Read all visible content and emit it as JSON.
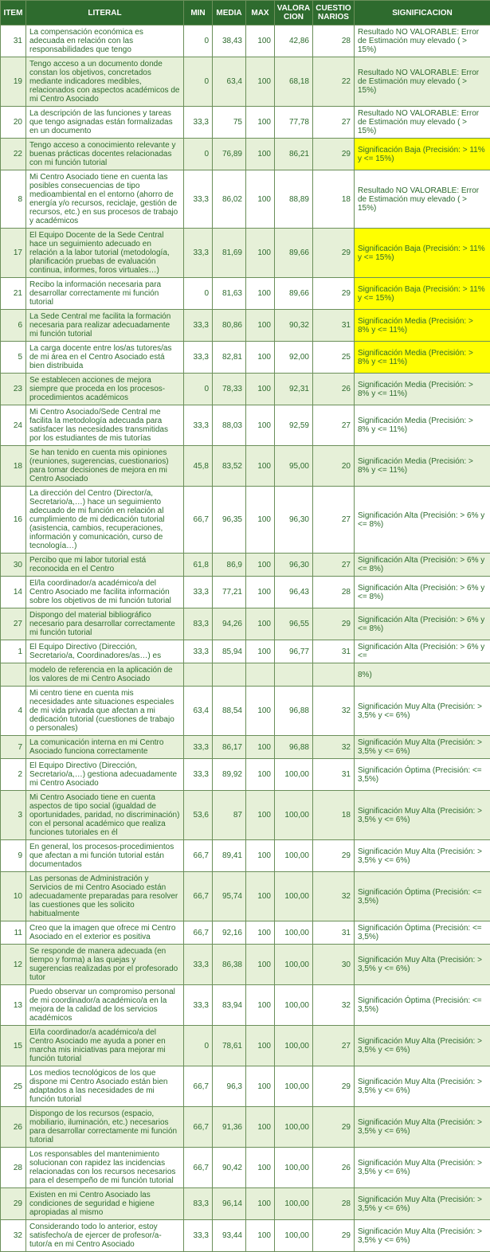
{
  "headers": {
    "item": "ITEM",
    "literal": "LITERAL",
    "min": "MIN",
    "media": "MEDIA",
    "max": "MAX",
    "valoracion": "VALORA CION",
    "cuestionarios": "CUESTIO NARIOS",
    "significacion": "SIGNIFICACION"
  },
  "sig_texts": {
    "no_valorable": "Resultado NO VALORABLE: Error de Estimación muy elevado ( > 15%)",
    "baja": "Significación Baja (Precisión: > 11% y <= 15%)",
    "media": "Significación Media (Precisión: > 8% y <= 11%)",
    "alta": "Significación Alta (Precisión: > 6% y <= 8%)",
    "muy_alta": "Significación Muy Alta (Precisión: > 3,5% y <= 6%)",
    "optima": "Significación Óptima (Precisión: <= 3,5%)"
  },
  "rows": [
    {
      "item": "31",
      "literal": "La compensación económica es adecuada en relación con las responsabilidades que tengo",
      "min": "0",
      "media": "38,43",
      "max": "100",
      "val": "42,86",
      "cue": "28",
      "sig": "no_valorable",
      "hl": false,
      "shade": "odd"
    },
    {
      "item": "19",
      "literal": "Tengo acceso a un documento donde constan los objetivos, concretados mediante indicadores medibles, relacionados con aspectos académicos de mi Centro Asociado",
      "min": "0",
      "media": "63,4",
      "max": "100",
      "val": "68,18",
      "cue": "22",
      "sig": "no_valorable",
      "hl": false,
      "shade": "even"
    },
    {
      "item": "20",
      "literal": "La descripción de las funciones y tareas que tengo asignadas están formalizadas en un documento",
      "min": "33,3",
      "media": "75",
      "max": "100",
      "val": "77,78",
      "cue": "27",
      "sig": "no_valorable",
      "hl": false,
      "shade": "odd"
    },
    {
      "item": "22",
      "literal": "Tengo acceso a conocimiento relevante y buenas prácticas docentes relacionadas con mi función tutorial",
      "min": "0",
      "media": "76,89",
      "max": "100",
      "val": "86,21",
      "cue": "29",
      "sig": "baja",
      "hl": true,
      "shade": "even"
    },
    {
      "item": "8",
      "literal": "Mi Centro Asociado tiene en cuenta las posibles consecuencias de tipo medioambiental en el entorno (ahorro de energía y/o recursos, reciclaje, gestión de recursos, etc.) en sus procesos de trabajo y académicos",
      "min": "33,3",
      "media": "86,02",
      "max": "100",
      "val": "88,89",
      "cue": "18",
      "sig": "no_valorable",
      "hl": false,
      "shade": "odd"
    },
    {
      "item": "17",
      "literal": "El Equipo Docente de la Sede Central hace un seguimiento adecuado en relación a la labor tutorial (metodología, planificación pruebas de evaluación continua, informes, foros virtuales…)",
      "min": "33,3",
      "media": "81,69",
      "max": "100",
      "val": "89,66",
      "cue": "29",
      "sig": "baja",
      "hl": true,
      "shade": "even"
    },
    {
      "item": "21",
      "literal": "Recibo la información necesaria para desarrollar correctamente mi función tutorial",
      "min": "0",
      "media": "81,63",
      "max": "100",
      "val": "89,66",
      "cue": "29",
      "sig": "baja",
      "hl": true,
      "shade": "odd"
    },
    {
      "item": "6",
      "literal": "La Sede Central me facilita la formación necesaria para realizar adecuadamente mi función tutorial",
      "min": "33,3",
      "media": "80,86",
      "max": "100",
      "val": "90,32",
      "cue": "31",
      "sig": "media",
      "hl": true,
      "shade": "even"
    },
    {
      "item": "5",
      "literal": "La carga docente entre los/as tutores/as de mi área en el Centro Asociado está bien distribuida",
      "min": "33,3",
      "media": "82,81",
      "max": "100",
      "val": "92,00",
      "cue": "25",
      "sig": "media",
      "hl": true,
      "shade": "odd"
    },
    {
      "item": "23",
      "literal": "Se establecen acciones de mejora siempre que proceda en los procesos-procedimientos académicos",
      "min": "0",
      "media": "78,33",
      "max": "100",
      "val": "92,31",
      "cue": "26",
      "sig": "media",
      "hl": false,
      "shade": "even"
    },
    {
      "item": "24",
      "literal": "Mi Centro Asociado/Sede Central me facilita la metodología adecuada para satisfacer las necesidades transmitidas por los estudiantes de mis tutorías",
      "min": "33,3",
      "media": "88,03",
      "max": "100",
      "val": "92,59",
      "cue": "27",
      "sig": "media",
      "hl": false,
      "shade": "odd"
    },
    {
      "item": "18",
      "literal": "Se han tenido en cuenta mis opiniones (reuniones, sugerencias, cuestionarios) para tomar decisiones de mejora en mi Centro Asociado",
      "min": "45,8",
      "media": "83,52",
      "max": "100",
      "val": "95,00",
      "cue": "20",
      "sig": "media",
      "hl": false,
      "shade": "even"
    },
    {
      "item": "16",
      "literal": "La dirección del Centro (Director/a, Secretario/a,…) hace un seguimiento adecuado de mi función en relación al cumplimiento de mi dedicación tutorial (asistencia, cambios, recuperaciones, información y comunicación, curso de tecnología…)",
      "min": "66,7",
      "media": "96,35",
      "max": "100",
      "val": "96,30",
      "cue": "27",
      "sig": "alta",
      "hl": false,
      "shade": "odd"
    },
    {
      "item": "30",
      "literal": "Percibo que mi labor tutorial está reconocida en el Centro",
      "min": "61,8",
      "media": "86,9",
      "max": "100",
      "val": "96,30",
      "cue": "27",
      "sig": "alta",
      "hl": false,
      "shade": "even"
    },
    {
      "item": "14",
      "literal": "El/la coordinador/a académico/a del Centro Asociado me facilita información sobre los objetivos de mi función tutorial",
      "min": "33,3",
      "media": "77,21",
      "max": "100",
      "val": "96,43",
      "cue": "28",
      "sig": "alta",
      "hl": false,
      "shade": "odd"
    },
    {
      "item": "27",
      "literal": "Dispongo del material bibliográfico necesario para desarrollar correctamente mi función tutorial",
      "min": "83,3",
      "media": "94,26",
      "max": "100",
      "val": "96,55",
      "cue": "29",
      "sig": "alta",
      "hl": false,
      "shade": "even"
    },
    {
      "item": "1",
      "literal": "El Equipo Directivo (Dirección, Secretario/a, Coordinadores/as…) es",
      "min": "33,3",
      "media": "85,94",
      "max": "100",
      "val": "96,77",
      "cue": "31",
      "sig_text": "Significación Alta (Precisión: > 6% y <=",
      "hl": false,
      "shade": "odd"
    },
    {
      "item": "",
      "literal": "modelo de referencia en la aplicación de los valores de mi Centro Asociado",
      "min": "",
      "media": "",
      "max": "",
      "val": "",
      "cue": "",
      "sig_text": "8%)",
      "hl": false,
      "shade": "even"
    },
    {
      "item": "4",
      "literal": "Mi centro tiene en cuenta mis necesidades ante situaciones especiales de mi vida privada que afectan a mi dedicación tutorial (cuestiones de trabajo o personales)",
      "min": "63,4",
      "media": "88,54",
      "max": "100",
      "val": "96,88",
      "cue": "32",
      "sig": "muy_alta",
      "hl": false,
      "shade": "odd"
    },
    {
      "item": "7",
      "literal": "La comunicación interna en mi Centro Asociado funciona correctamente",
      "min": "33,3",
      "media": "86,17",
      "max": "100",
      "val": "96,88",
      "cue": "32",
      "sig": "muy_alta",
      "hl": false,
      "shade": "even"
    },
    {
      "item": "2",
      "literal": "El Equipo Directivo (Dirección, Secretario/a,…) gestiona adecuadamente mi Centro Asociado",
      "min": "33,3",
      "media": "89,92",
      "max": "100",
      "val": "100,00",
      "cue": "31",
      "sig": "optima",
      "hl": false,
      "shade": "odd"
    },
    {
      "item": "3",
      "literal": "Mi Centro Asociado tiene en cuenta aspectos de tipo social (igualdad de oportunidades, paridad, no discriminación) con el personal académico que realiza funciones tutoriales en él",
      "min": "53,6",
      "media": "87",
      "max": "100",
      "val": "100,00",
      "cue": "18",
      "sig": "muy_alta",
      "hl": false,
      "shade": "even"
    },
    {
      "item": "9",
      "literal": "En general, los procesos-procedimientos que afectan a mi función tutorial están documentados",
      "min": "66,7",
      "media": "89,41",
      "max": "100",
      "val": "100,00",
      "cue": "29",
      "sig": "muy_alta",
      "hl": false,
      "shade": "odd"
    },
    {
      "item": "10",
      "literal": "Las personas de Administración y Servicios de mi Centro Asociado están adecuadamente preparadas para resolver las cuestiones que les solicito habitualmente",
      "min": "66,7",
      "media": "95,74",
      "max": "100",
      "val": "100,00",
      "cue": "32",
      "sig": "optima",
      "hl": false,
      "shade": "even"
    },
    {
      "item": "11",
      "literal": "Creo que la imagen que ofrece mi Centro Asociado en el exterior es positiva",
      "min": "66,7",
      "media": "92,16",
      "max": "100",
      "val": "100,00",
      "cue": "31",
      "sig": "optima",
      "hl": false,
      "shade": "odd"
    },
    {
      "item": "12",
      "literal": "Se responde de manera adecuada (en tiempo y forma) a las quejas y sugerencias realizadas por el profesorado tutor",
      "min": "33,3",
      "media": "86,38",
      "max": "100",
      "val": "100,00",
      "cue": "30",
      "sig": "muy_alta",
      "hl": false,
      "shade": "even"
    },
    {
      "item": "13",
      "literal": "Puedo observar un compromiso personal de mi coordinador/a académico/a en la mejora de la calidad de los servicios académicos",
      "min": "33,3",
      "media": "83,94",
      "max": "100",
      "val": "100,00",
      "cue": "32",
      "sig": "optima",
      "hl": false,
      "shade": "odd"
    },
    {
      "item": "15",
      "literal": "El/la coordinador/a académico/a del Centro Asociado me ayuda a poner en marcha mis iniciativas para mejorar mi función tutorial",
      "min": "0",
      "media": "78,61",
      "max": "100",
      "val": "100,00",
      "cue": "27",
      "sig": "muy_alta",
      "hl": false,
      "shade": "even"
    },
    {
      "item": "25",
      "literal": "Los medios tecnológicos de los que dispone mi Centro Asociado están bien adaptados a las necesidades de mi función tutorial",
      "min": "66,7",
      "media": "96,3",
      "max": "100",
      "val": "100,00",
      "cue": "29",
      "sig": "muy_alta",
      "hl": false,
      "shade": "odd"
    },
    {
      "item": "26",
      "literal": "Dispongo de los recursos (espacio, mobiliario, iluminación, etc.) necesarios para desarrollar correctamente mi función tutorial",
      "min": "66,7",
      "media": "91,36",
      "max": "100",
      "val": "100,00",
      "cue": "29",
      "sig": "muy_alta",
      "hl": false,
      "shade": "even"
    },
    {
      "item": "28",
      "literal": "Los responsables del mantenimiento solucionan con rapidez las incidencias relacionadas con los recursos necesarios para el desempeño de mi función tutorial",
      "min": "66,7",
      "media": "90,42",
      "max": "100",
      "val": "100,00",
      "cue": "26",
      "sig": "muy_alta",
      "hl": false,
      "shade": "odd"
    },
    {
      "item": "29",
      "literal": "Existen en mi Centro Asociado las condiciones de seguridad e higiene apropiadas al mismo",
      "min": "83,3",
      "media": "96,14",
      "max": "100",
      "val": "100,00",
      "cue": "28",
      "sig": "muy_alta",
      "hl": false,
      "shade": "even"
    },
    {
      "item": "32",
      "literal": "Considerando todo lo anterior, estoy satisfecho/a de ejercer de profesor/a-tutor/a en mi Centro Asociado",
      "min": "33,3",
      "media": "93,44",
      "max": "100",
      "val": "100,00",
      "cue": "29",
      "sig": "muy_alta",
      "hl": false,
      "shade": "odd"
    }
  ]
}
